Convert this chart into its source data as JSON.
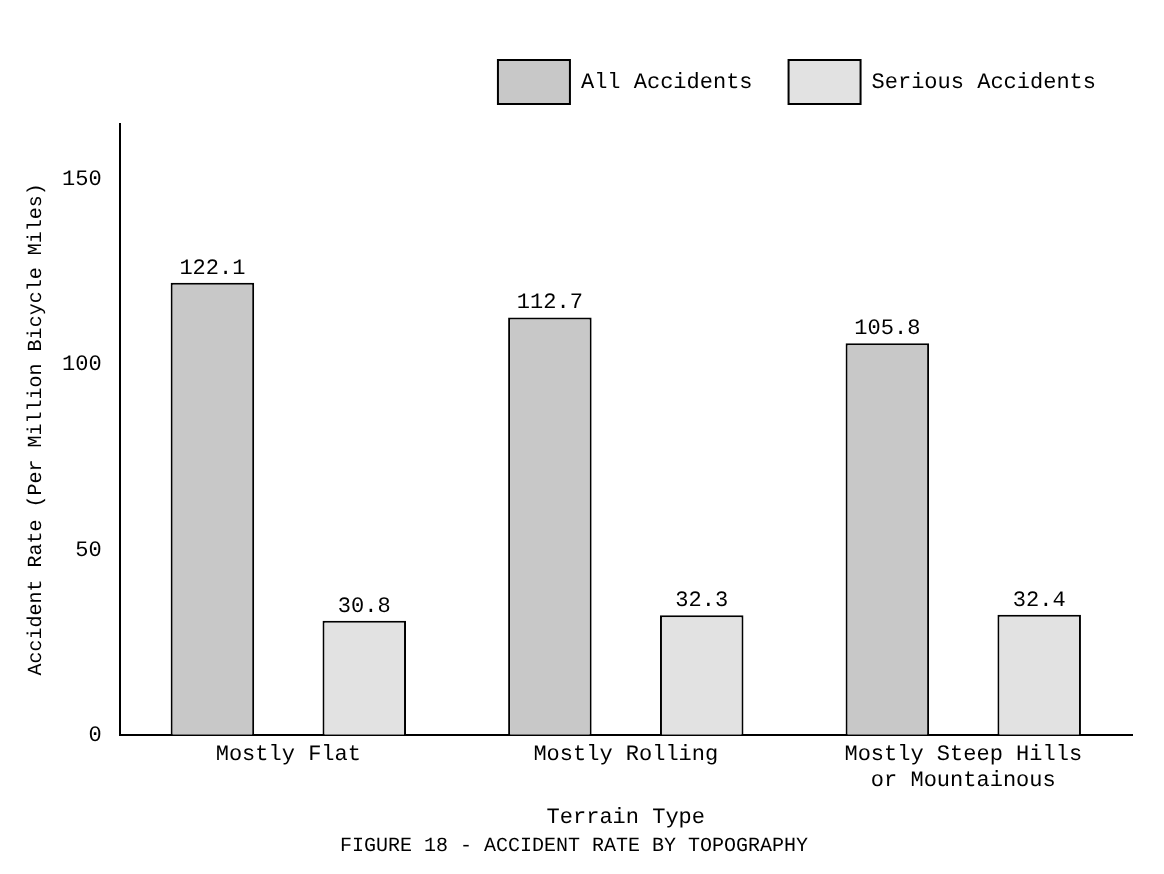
{
  "chart_data": {
    "type": "bar",
    "title": "FIGURE 18 - ACCIDENT RATE BY TOPOGRAPHY",
    "xlabel": "Terrain Type",
    "ylabel": "Accident Rate (Per Million Bicycle Miles)",
    "categories": [
      "Mostly Flat",
      "Mostly Rolling",
      "Mostly Steep Hills or Mountainous"
    ],
    "series": [
      {
        "name": "All Accidents",
        "color": "#c8c8c8",
        "values": [
          122.1,
          112.7,
          105.8
        ]
      },
      {
        "name": "Serious Accidents",
        "color": "#e2e2e2",
        "values": [
          30.8,
          32.3,
          32.4
        ]
      }
    ],
    "ylim": [
      0,
      165
    ],
    "yticks": [
      0,
      50,
      100,
      150
    ],
    "grid": false,
    "legend": "top right",
    "data_labels": true
  }
}
